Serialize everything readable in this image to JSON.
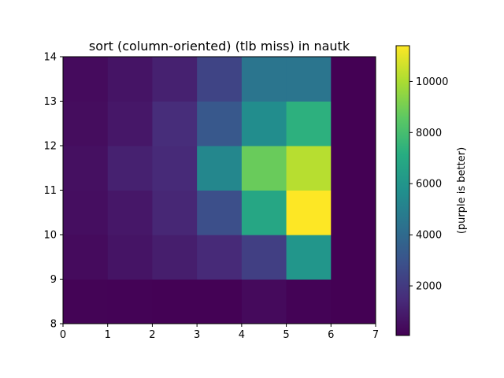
{
  "chart_data": {
    "type": "heatmap",
    "title": "sort (column-oriented) (tlb miss) in nautk",
    "xlabel": "",
    "ylabel": "",
    "x_edges": [
      0,
      1,
      2,
      3,
      4,
      5,
      6,
      7
    ],
    "y_edges": [
      8,
      9,
      10,
      11,
      12,
      13,
      14
    ],
    "xlim": [
      0,
      7
    ],
    "ylim": [
      8,
      14
    ],
    "x_ticks": [
      "0",
      "1",
      "2",
      "3",
      "4",
      "5",
      "6",
      "7"
    ],
    "y_ticks": [
      "8",
      "9",
      "10",
      "11",
      "12",
      "13",
      "14"
    ],
    "values": [
      [
        150,
        120,
        80,
        100,
        350,
        120,
        60
      ],
      [
        400,
        700,
        1000,
        1400,
        2200,
        6000,
        60
      ],
      [
        500,
        800,
        1300,
        2800,
        6800,
        11400,
        60
      ],
      [
        550,
        1100,
        1400,
        5300,
        8800,
        10200,
        60
      ],
      [
        450,
        800,
        1500,
        3200,
        5600,
        7300,
        60
      ],
      [
        400,
        700,
        1100,
        2400,
        4500,
        4500,
        60
      ]
    ],
    "colorbar": {
      "label": "(purple is better)",
      "min": 60,
      "max": 11400,
      "ticks": [
        2000,
        4000,
        6000,
        8000,
        10000
      ],
      "tick_labels": [
        "2000",
        "4000",
        "6000",
        "8000",
        "10000"
      ],
      "colormap": "viridis"
    },
    "grid": false
  }
}
